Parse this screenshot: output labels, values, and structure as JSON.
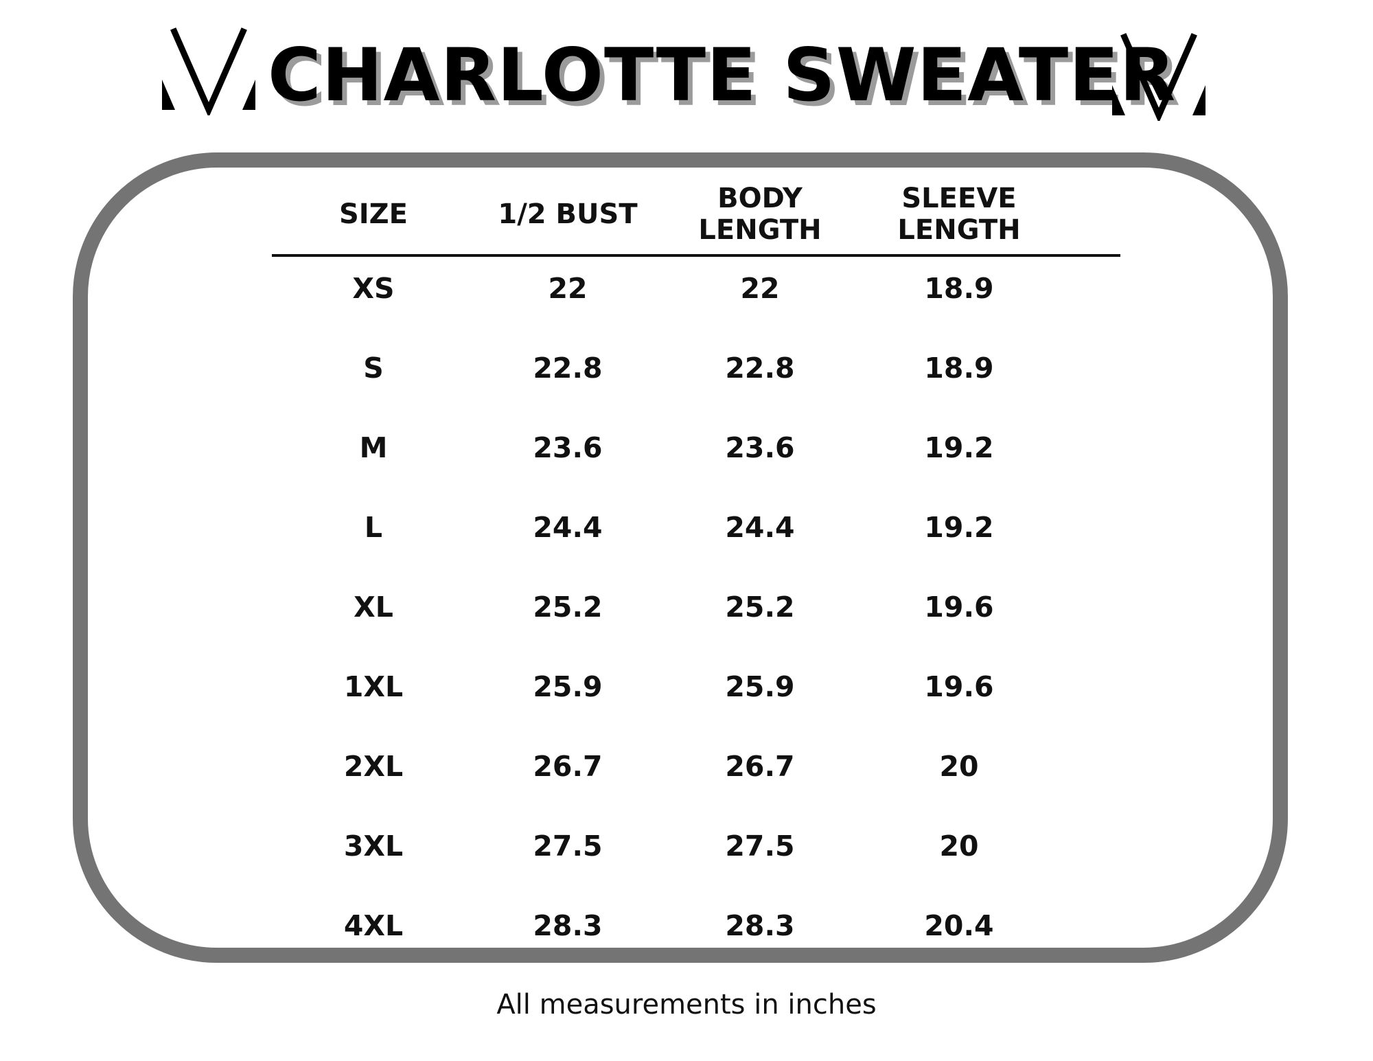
{
  "title": "CHARLOTTE SWEATER",
  "icons": {
    "left_logo": "chevron-v-logo-icon",
    "right_logo": "chevron-v-logo-icon"
  },
  "colors": {
    "frame": "#747474",
    "title": "#000000",
    "title_shadow": "#9b9b9b",
    "text": "#111111"
  },
  "table": {
    "headers": {
      "size": "SIZE",
      "bust": "1/2 BUST",
      "body_length": "BODY\nLENGTH",
      "sleeve_length": "SLEEVE\nLENGTH"
    },
    "rows": [
      {
        "size": "XS",
        "bust": "22",
        "body_length": "22",
        "sleeve_length": "18.9"
      },
      {
        "size": "S",
        "bust": "22.8",
        "body_length": "22.8",
        "sleeve_length": "18.9"
      },
      {
        "size": "M",
        "bust": "23.6",
        "body_length": "23.6",
        "sleeve_length": "19.2"
      },
      {
        "size": "L",
        "bust": "24.4",
        "body_length": "24.4",
        "sleeve_length": "19.2"
      },
      {
        "size": "XL",
        "bust": "25.2",
        "body_length": "25.2",
        "sleeve_length": "19.6"
      },
      {
        "size": "1XL",
        "bust": "25.9",
        "body_length": "25.9",
        "sleeve_length": "19.6"
      },
      {
        "size": "2XL",
        "bust": "26.7",
        "body_length": "26.7",
        "sleeve_length": "20"
      },
      {
        "size": "3XL",
        "bust": "27.5",
        "body_length": "27.5",
        "sleeve_length": "20"
      },
      {
        "size": "4XL",
        "bust": "28.3",
        "body_length": "28.3",
        "sleeve_length": "20.4"
      }
    ]
  },
  "footer_note": "All measurements in inches"
}
